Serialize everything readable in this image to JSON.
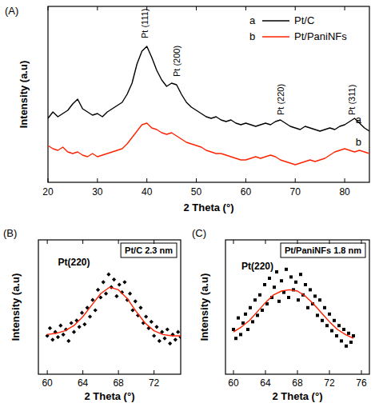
{
  "chart_data": [
    {
      "type": "line",
      "panel": "(A)",
      "x_label": "2 Theta (°)",
      "y_label": "Intensity (a.u)",
      "xlim": [
        20,
        85
      ],
      "xticks": [
        20,
        30,
        40,
        50,
        60,
        70,
        80
      ],
      "ylim": [
        0,
        110
      ],
      "tick_labels": "x",
      "legend": "upper right",
      "x": [
        20,
        21,
        22,
        23,
        24,
        25,
        26,
        27,
        28,
        29,
        30,
        31,
        32,
        33,
        34,
        35,
        36,
        37,
        38,
        39,
        40,
        41,
        42,
        43,
        44,
        45,
        46,
        47,
        48,
        49,
        50,
        51,
        52,
        53,
        54,
        55,
        56,
        57,
        58,
        59,
        60,
        61,
        62,
        63,
        64,
        65,
        66,
        67,
        68,
        69,
        70,
        71,
        72,
        73,
        74,
        75,
        76,
        77,
        78,
        79,
        80,
        81,
        82,
        83,
        84,
        85
      ],
      "series": [
        {
          "name": "Pt/C",
          "label": "a",
          "color": "#000000",
          "values": [
            40,
            44,
            41,
            43,
            45,
            49,
            52,
            46,
            44,
            42,
            43,
            41,
            44,
            46,
            48,
            50,
            55,
            62,
            74,
            82,
            85,
            78,
            70,
            64,
            60,
            62,
            61,
            55,
            50,
            47,
            45,
            43,
            41,
            40,
            41,
            39,
            38,
            39,
            37,
            36,
            37,
            36,
            35,
            36,
            37,
            36,
            38,
            39,
            37,
            35,
            34,
            33,
            35,
            34,
            33,
            32,
            33,
            34,
            33,
            35,
            36,
            38,
            40,
            37,
            34,
            32
          ]
        },
        {
          "name": "Pt/PaniNFs",
          "label": "b",
          "color": "#ff2200",
          "values": [
            23,
            21,
            20,
            22,
            19,
            18,
            19,
            17,
            16,
            18,
            16,
            17,
            18,
            19,
            20,
            21,
            24,
            28,
            32,
            36,
            37,
            34,
            33,
            31,
            30,
            31,
            29,
            27,
            25,
            24,
            23,
            22,
            20,
            19,
            18,
            18,
            17,
            16,
            15,
            14,
            14,
            15,
            16,
            15,
            16,
            17,
            16,
            14,
            13,
            12,
            11,
            12,
            13,
            14,
            13,
            14,
            15,
            17,
            19,
            20,
            21,
            20,
            19,
            20,
            19,
            18
          ]
        }
      ],
      "annotations": [
        {
          "text": "Pt (111)",
          "x": 39.5,
          "y": 90
        },
        {
          "text": "Pt (200)",
          "x": 46,
          "y": 66
        },
        {
          "text": "Pt (220)",
          "x": 67,
          "y": 42
        },
        {
          "text": "Pt (311)",
          "x": 81.5,
          "y": 42
        }
      ]
    },
    {
      "type": "scatter",
      "panel": "(B)",
      "title": "Pt/C 2.3 nm",
      "x_label": "2 Theta (°)",
      "y_label": "Intensity (a.u)",
      "xlim": [
        59,
        75
      ],
      "xticks": [
        60,
        64,
        68,
        72
      ],
      "ylim": [
        0,
        105
      ],
      "tick_labels": "x",
      "series": [
        {
          "type": "scatter",
          "marker": "diamond",
          "color": "#000000",
          "x": [
            60.0,
            60.3,
            60.6,
            60.9,
            61.2,
            61.5,
            61.8,
            62.1,
            62.4,
            62.7,
            63.0,
            63.3,
            63.6,
            63.9,
            64.2,
            64.5,
            64.8,
            65.1,
            65.4,
            65.7,
            66.0,
            66.3,
            66.6,
            66.9,
            67.2,
            67.5,
            67.8,
            68.1,
            68.4,
            68.7,
            69.0,
            69.3,
            69.6,
            69.9,
            70.2,
            70.5,
            70.8,
            71.1,
            71.4,
            71.7,
            72.0,
            72.3,
            72.6,
            72.9,
            73.2,
            73.5,
            73.8,
            74.1,
            74.4,
            74.7,
            75.0
          ],
          "values": [
            30,
            36,
            27,
            33,
            29,
            38,
            31,
            35,
            26,
            40,
            33,
            42,
            37,
            48,
            39,
            52,
            45,
            58,
            50,
            66,
            60,
            72,
            63,
            78,
            68,
            74,
            61,
            70,
            64,
            72,
            58,
            63,
            50,
            57,
            46,
            52,
            40,
            45,
            36,
            41,
            30,
            37,
            26,
            33,
            28,
            35,
            24,
            31,
            27,
            33,
            29
          ]
        },
        {
          "type": "line",
          "color": "#ff2200",
          "x": [
            60,
            61,
            62,
            63,
            64,
            65,
            66,
            67,
            68,
            69,
            70,
            71,
            72,
            73,
            74,
            75
          ],
          "values": [
            31,
            32,
            34,
            38,
            45,
            54,
            63,
            68,
            66,
            59,
            49,
            40,
            34,
            31,
            30,
            30
          ]
        }
      ],
      "annotations": [
        {
          "text": "Pt(220)",
          "x": 61.2,
          "y": 85
        }
      ]
    },
    {
      "type": "scatter",
      "panel": "(C)",
      "title": "Pt/PaniNFs  1.8 nm",
      "x_label": "2 Theta (°)",
      "y_label": "Intensity (a.u)",
      "xlim": [
        59,
        77
      ],
      "xticks": [
        60,
        64,
        68,
        72,
        76
      ],
      "ylim": [
        0,
        105
      ],
      "tick_labels": "x",
      "series": [
        {
          "type": "scatter",
          "marker": "square",
          "color": "#000000",
          "x": [
            60.0,
            60.3,
            60.6,
            60.9,
            61.2,
            61.5,
            61.8,
            62.1,
            62.4,
            62.7,
            63.0,
            63.3,
            63.6,
            63.9,
            64.2,
            64.5,
            64.8,
            65.1,
            65.4,
            65.7,
            66.0,
            66.3,
            66.6,
            66.9,
            67.2,
            67.5,
            67.8,
            68.1,
            68.4,
            68.7,
            69.0,
            69.3,
            69.6,
            69.9,
            70.2,
            70.5,
            70.8,
            71.1,
            71.4,
            71.7,
            72.0,
            72.3,
            72.6,
            72.9,
            73.2,
            73.5,
            73.8,
            74.1,
            74.4,
            74.7,
            75.0
          ],
          "values": [
            35,
            28,
            44,
            31,
            40,
            47,
            35,
            52,
            41,
            58,
            46,
            62,
            50,
            70,
            55,
            75,
            60,
            68,
            80,
            57,
            73,
            64,
            82,
            60,
            76,
            66,
            72,
            58,
            78,
            62,
            70,
            52,
            66,
            55,
            61,
            46,
            58,
            42,
            52,
            38,
            47,
            34,
            42,
            30,
            38,
            26,
            35,
            22,
            32,
            25,
            30
          ]
        },
        {
          "type": "line",
          "color": "#ff2200",
          "x": [
            60,
            61,
            62,
            63,
            64,
            65,
            66,
            67,
            68,
            69,
            70,
            71,
            72,
            73,
            74,
            75
          ],
          "values": [
            33,
            37,
            42,
            49,
            56,
            62,
            65,
            66,
            65,
            61,
            55,
            48,
            41,
            35,
            31,
            28
          ]
        }
      ],
      "annotations": [
        {
          "text": "Pt(220)",
          "x": 61,
          "y": 82
        }
      ]
    }
  ]
}
